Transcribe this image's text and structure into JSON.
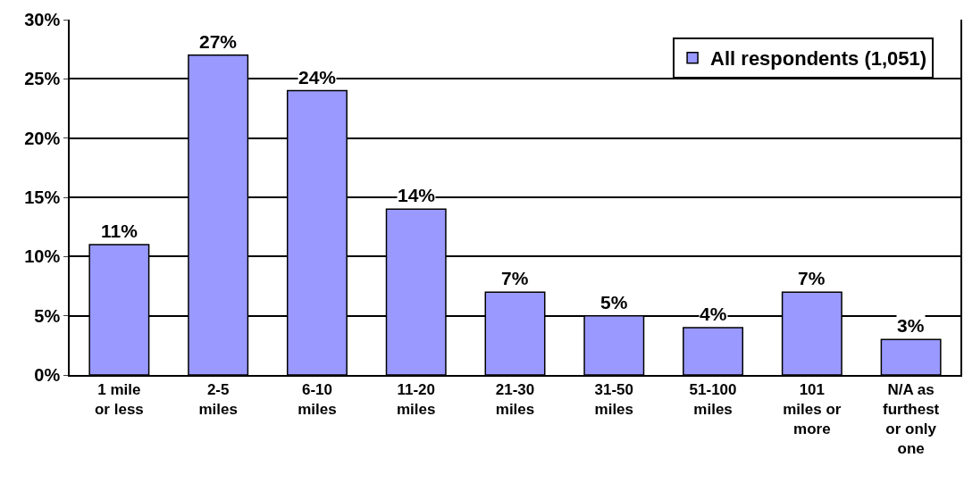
{
  "chart_data": {
    "type": "bar",
    "categories": [
      "1 mile\nor less",
      "2-5\nmiles",
      "6-10\nmiles",
      "11-20\nmiles",
      "21-30\nmiles",
      "31-50\nmiles",
      "51-100\nmiles",
      "101\nmiles or\nmore",
      "N/A as\nfurthest\nor only\none"
    ],
    "series": [
      {
        "name": "All respondents (1,051)",
        "color": "#9999ff",
        "values": [
          11,
          27,
          24,
          14,
          7,
          5,
          4,
          7,
          3
        ],
        "value_labels": [
          "11%",
          "27%",
          "24%",
          "14%",
          "7%",
          "5%",
          "4%",
          "7%",
          "3%"
        ]
      }
    ],
    "ylim": [
      0,
      30
    ],
    "yticks": [
      {
        "value": 0,
        "label": "0%"
      },
      {
        "value": 5,
        "label": "5%"
      },
      {
        "value": 10,
        "label": "10%"
      },
      {
        "value": 15,
        "label": "15%"
      },
      {
        "value": 20,
        "label": "20%"
      },
      {
        "value": 25,
        "label": "25%"
      },
      {
        "value": 30,
        "label": "30%"
      }
    ],
    "grid": "y",
    "legend": "top right"
  }
}
